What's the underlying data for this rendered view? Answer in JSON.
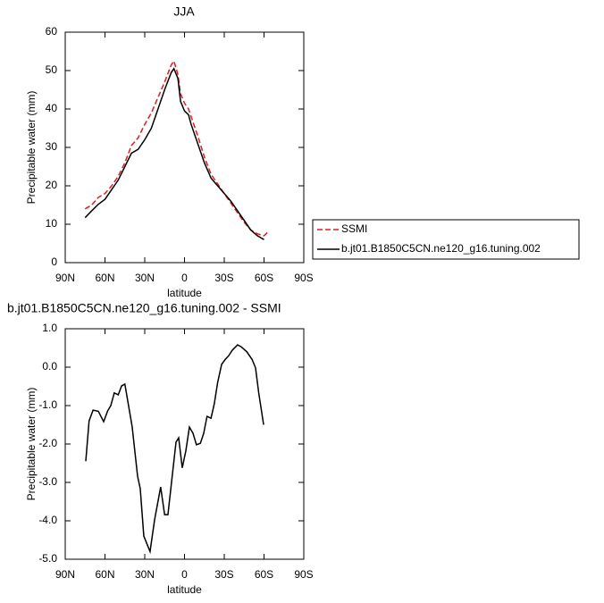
{
  "chart_data": [
    {
      "type": "line",
      "title": "JJA",
      "xlabel": "latitude",
      "ylabel": "Precipitable water (mm)",
      "x": [
        75,
        70,
        65,
        60,
        55,
        50,
        45,
        40,
        35,
        30,
        25,
        20,
        15,
        10,
        8,
        5,
        3,
        0,
        -3,
        -5,
        -10,
        -15,
        -20,
        -25,
        -30,
        -35,
        -40,
        -45,
        -50,
        -55,
        -60,
        -63
      ],
      "series": [
        {
          "name": "SSMI",
          "color": "#e41a1c",
          "linestyle": "dashed",
          "values": [
            14,
            15,
            17,
            18,
            20,
            22.5,
            26,
            30.5,
            32.5,
            36,
            39,
            43,
            47,
            51.5,
            52.5,
            49,
            44,
            41.5,
            40,
            38,
            33,
            27.5,
            23,
            20.5,
            18,
            15.5,
            13,
            10.5,
            8.5,
            7.5,
            7,
            8
          ]
        },
        {
          "name": "b.jt01.B1850C5CN.ne120_g16.tuning.002",
          "color": "#000000",
          "linestyle": "solid",
          "values": [
            11.7,
            13.5,
            15.2,
            16.5,
            19,
            21.5,
            25,
            28.5,
            29.5,
            32,
            35,
            40,
            45,
            49.5,
            50.5,
            48,
            42,
            39.5,
            38.5,
            36,
            31,
            26,
            22,
            20,
            18,
            16,
            13.5,
            11,
            8.5,
            7,
            6,
            null
          ]
        }
      ],
      "xlim": [
        90,
        -90
      ],
      "xticks": [
        {
          "value": 90,
          "label": "90N"
        },
        {
          "value": 60,
          "label": "60N"
        },
        {
          "value": 30,
          "label": "30N"
        },
        0,
        {
          "value": -30,
          "label": "30S"
        },
        {
          "value": -60,
          "label": "60S"
        },
        {
          "value": -90,
          "label": "90S"
        }
      ],
      "ylim": [
        0,
        60
      ],
      "yticks": [
        0,
        10,
        20,
        30,
        40,
        50,
        60
      ],
      "legend": "right"
    },
    {
      "type": "line",
      "title": "b.jt01.B1850C5CN.ne120_g16.tuning.002 - SSMI",
      "xlabel": "latitude",
      "ylabel": "Precipitable water (mm)",
      "x": [
        74.5,
        72,
        69,
        65,
        61,
        58,
        55.6,
        53,
        50,
        47.5,
        45,
        39.5,
        35.4,
        33.4,
        30.7,
        26,
        22.6,
        18,
        15,
        12.5,
        9.8,
        6.4,
        4.4,
        1.7,
        -1,
        -3.7,
        -6.4,
        -9,
        -12,
        -14.5,
        -17,
        -20,
        -22.5,
        -25,
        -28,
        -30.7,
        -33.4,
        -36,
        -40,
        -42.8,
        -47,
        -51,
        -53.6,
        -56,
        -59.7
      ],
      "series": [
        {
          "color": "#000000",
          "linestyle": "solid",
          "values": [
            -2.45,
            -1.4,
            -1.12,
            -1.15,
            -1.42,
            -1.14,
            -1.0,
            -0.67,
            -0.72,
            -0.49,
            -0.44,
            -1.55,
            -2.84,
            -3.16,
            -4.4,
            -4.8,
            -3.98,
            -3.12,
            -3.84,
            -3.84,
            -3.0,
            -1.95,
            -1.84,
            -2.62,
            -2.18,
            -1.56,
            -1.72,
            -2.02,
            -1.98,
            -1.72,
            -1.28,
            -1.33,
            -0.95,
            -0.4,
            0.07,
            0.2,
            0.3,
            0.44,
            0.58,
            0.53,
            0.4,
            0.2,
            -0.02,
            -0.67,
            -1.5
          ]
        }
      ],
      "xlim": [
        90,
        -90
      ],
      "xticks": [
        {
          "value": 90,
          "label": "90N"
        },
        {
          "value": 60,
          "label": "60N"
        },
        {
          "value": 30,
          "label": "30N"
        },
        0,
        {
          "value": -30,
          "label": "30S"
        },
        {
          "value": -60,
          "label": "60S"
        },
        {
          "value": -90,
          "label": "90S"
        }
      ],
      "ylim": [
        -5,
        1
      ],
      "yticks": [
        {
          "value": -5,
          "label": "-5.0"
        },
        {
          "value": -4,
          "label": "-4.0"
        },
        {
          "value": -3,
          "label": "-3.0"
        },
        {
          "value": -2,
          "label": "-2.0"
        },
        {
          "value": -1,
          "label": "-1.0"
        },
        {
          "value": 0,
          "label": "0.0"
        },
        {
          "value": 1,
          "label": "1.0"
        }
      ]
    }
  ]
}
